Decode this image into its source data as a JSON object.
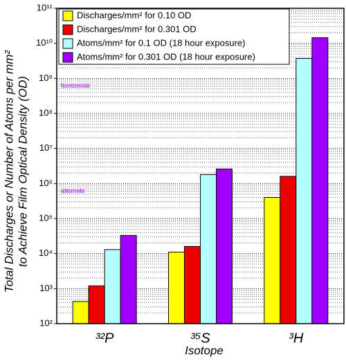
{
  "chart_data": {
    "type": "bar",
    "categories": [
      "³²P",
      "³⁵S",
      "³H"
    ],
    "xlabel": "Isotope",
    "ylabel": [
      "Total Discharges or Number of Atoms per mm²",
      "to Achieve Film Optical Density (OD)"
    ],
    "log_y": true,
    "grid": "minor",
    "legend": "upper left",
    "ylim": [
      100,
      100000000000
    ],
    "yticks": [
      {
        "value": 100,
        "label": "10²"
      },
      {
        "value": 1000,
        "label": "10³"
      },
      {
        "value": 10000,
        "label": "10⁴"
      },
      {
        "value": 100000,
        "label": "10⁵"
      },
      {
        "value": 1000000,
        "label": "10⁶"
      },
      {
        "value": 10000000,
        "label": "10⁷"
      },
      {
        "value": 100000000,
        "label": "10⁸"
      },
      {
        "value": 1000000000,
        "label": "10⁹"
      },
      {
        "value": 10000000000,
        "label": "10¹⁰"
      },
      {
        "value": 100000000000,
        "label": "10¹¹"
      }
    ],
    "annotations": [
      {
        "text": "femtomole",
        "y": 602000000
      },
      {
        "text": "attomole",
        "y": 602000
      }
    ],
    "series": [
      {
        "name": "Discharges/mm² for 0.10 OD",
        "color": "#ffff00",
        "values": [
          430,
          11000,
          400000
        ]
      },
      {
        "name": "Discharges/mm² for 0.301 OD",
        "color": "#ee0000",
        "values": [
          1200,
          16000,
          1600000
        ]
      },
      {
        "name": "Atoms/mm² for 0.1 OD (18 hour exposure)",
        "color": "#b3ffff",
        "values": [
          13000,
          1800000,
          3700000000
        ]
      },
      {
        "name": "Atoms/mm² for 0.301 OD (18 hour exposure)",
        "color": "#a000ff",
        "values": [
          33000,
          2600000,
          14500000000
        ]
      }
    ]
  }
}
